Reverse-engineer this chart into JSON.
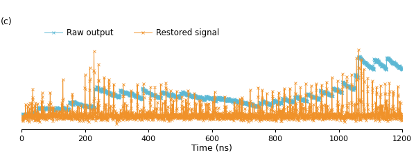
{
  "title_label": "(c)",
  "xlabel": "Time (ns)",
  "xlim": [
    0,
    1200
  ],
  "raw_color": "#5BB8D4",
  "restored_color": "#F0922A",
  "raw_label": "Raw output",
  "restored_label": "Restored signal",
  "marker": "x",
  "markersize": 2.5,
  "linewidth": 0.7,
  "background_color": "#ffffff",
  "grid_color": "#dddddd",
  "xticks": [
    0,
    200,
    400,
    600,
    800,
    1000,
    1200
  ],
  "figsize": [
    6.0,
    2.27
  ],
  "dpi": 100
}
